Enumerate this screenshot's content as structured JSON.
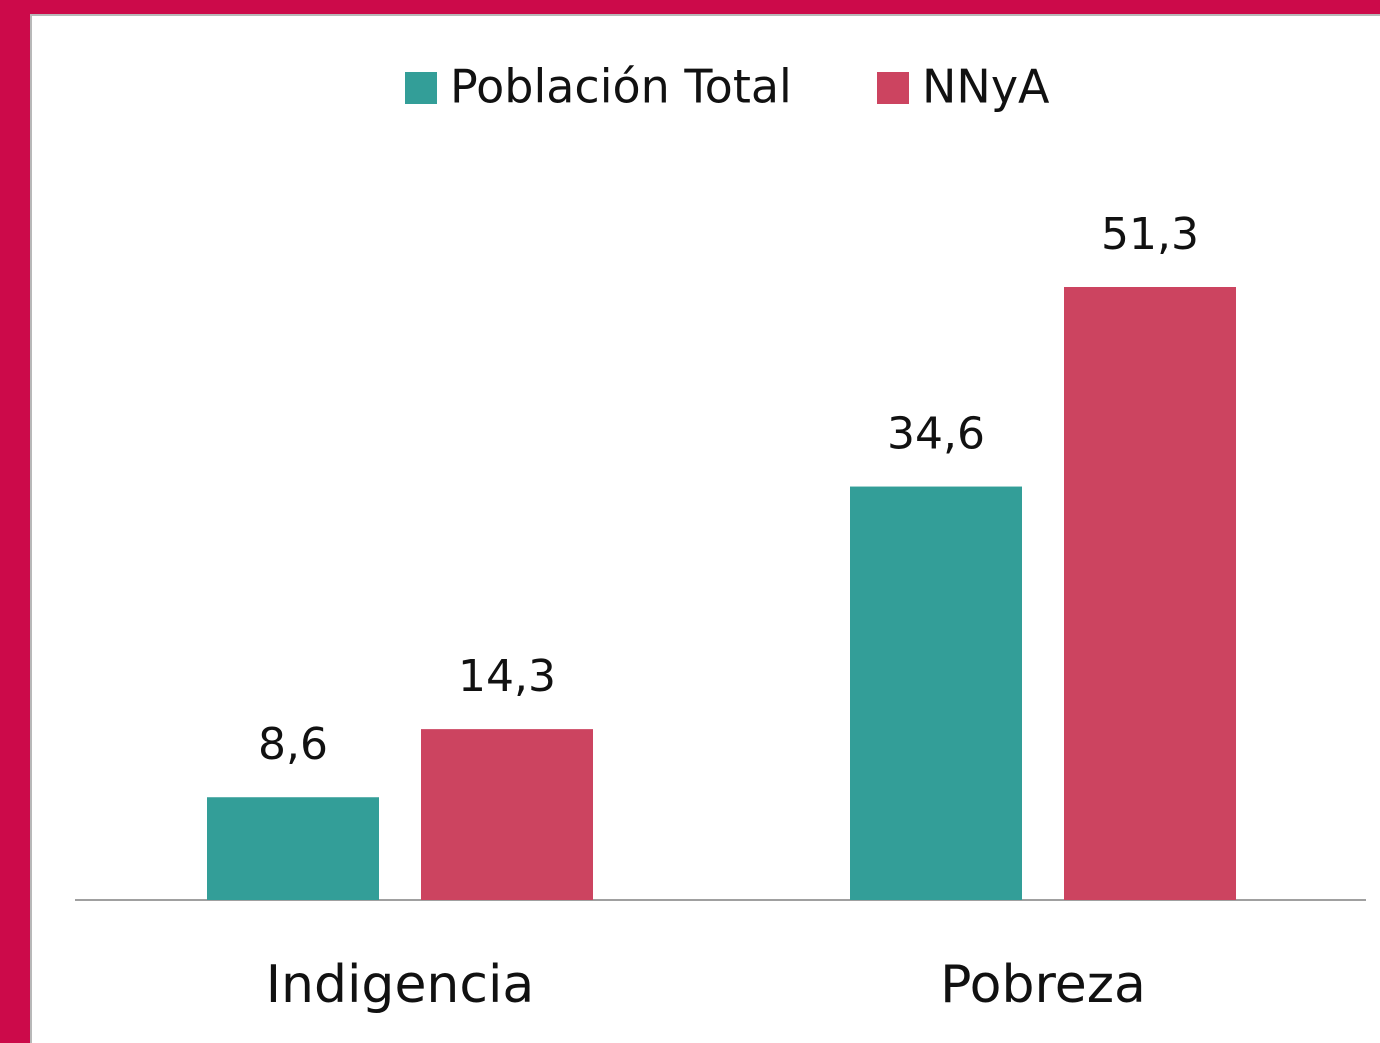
{
  "chart_data": {
    "type": "bar",
    "categories": [
      "Indigencia",
      "Pobreza"
    ],
    "series": [
      {
        "name": "Población Total",
        "color": "#339e98",
        "values": [
          8.6,
          34.6
        ],
        "value_labels": [
          "8,6",
          "34,6"
        ]
      },
      {
        "name": "NNyA",
        "color": "#cc4460",
        "values": [
          14.3,
          51.3
        ],
        "value_labels": [
          "14,3",
          "51,3"
        ]
      }
    ]
  }
}
